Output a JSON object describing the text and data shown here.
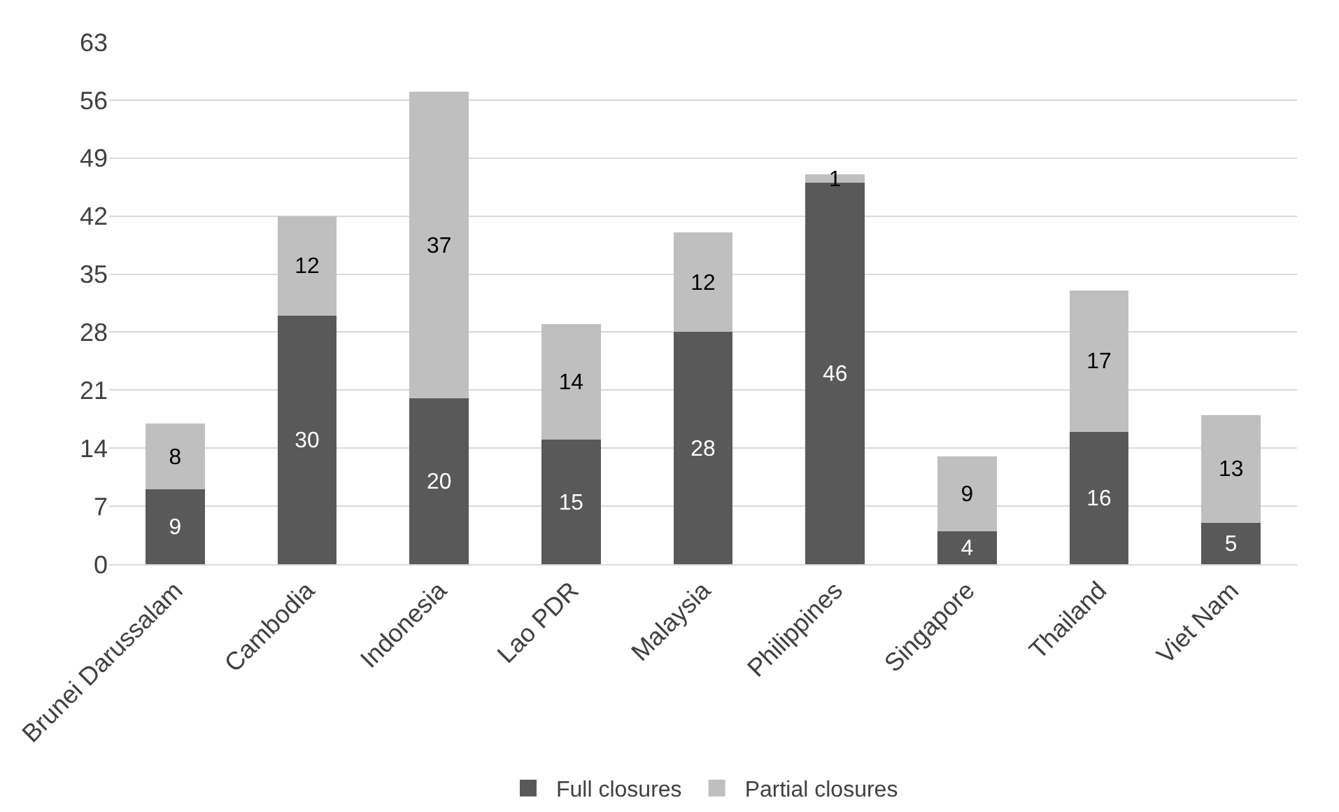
{
  "chart_data": {
    "type": "bar",
    "stacked": true,
    "categories": [
      "Brunei Darussalam",
      "Cambodia",
      "Indonesia",
      "Lao PDR",
      "Malaysia",
      "Philippines",
      "Singapore",
      "Thailand",
      "Viet Nam"
    ],
    "series": [
      {
        "name": "Full closures",
        "color": "#595959",
        "values": [
          9,
          30,
          20,
          15,
          28,
          46,
          4,
          16,
          5
        ]
      },
      {
        "name": "Partial closures",
        "color": "#bfbfbf",
        "values": [
          8,
          12,
          37,
          14,
          12,
          1,
          9,
          17,
          13
        ]
      }
    ],
    "ylim": [
      0,
      63
    ],
    "yticks": [
      0,
      7,
      14,
      21,
      28,
      35,
      42,
      49,
      56,
      63
    ],
    "grid": "y",
    "legend": "bottom",
    "data_labels": true
  }
}
